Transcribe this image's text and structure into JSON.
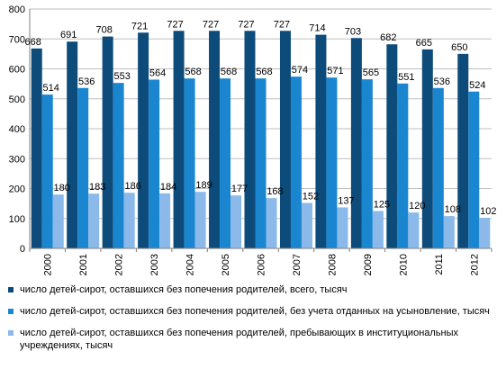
{
  "chart_data": {
    "type": "bar",
    "categories": [
      "2000",
      "2001",
      "2002",
      "2003",
      "2004",
      "2005",
      "2006",
      "2007",
      "2008",
      "2009",
      "2010",
      "2011",
      "2012"
    ],
    "series": [
      {
        "name": "число детей-сирот, оставшихся без попечения родителей, всего, тысяч",
        "color": "#0d4b7a",
        "values": [
          668,
          691,
          708,
          721,
          727,
          727,
          727,
          727,
          714,
          703,
          682,
          665,
          650
        ]
      },
      {
        "name": "число детей-сирот, оставшихся без попечения родителей, без учета отданных на усыновление, тысяч",
        "color": "#1b86d0",
        "values": [
          514,
          536,
          553,
          564,
          568,
          568,
          568,
          574,
          571,
          565,
          551,
          536,
          524
        ]
      },
      {
        "name": "число детей-сирот, оставшихся без попечения родителей, пребывающих в институциональных учреждениях, тысяч",
        "color": "#8ab9ea",
        "values": [
          180,
          183,
          186,
          184,
          189,
          177,
          168,
          152,
          137,
          125,
          120,
          108,
          102
        ]
      }
    ],
    "ylim": [
      0,
      800
    ],
    "yticks": [
      "0",
      "100",
      "200",
      "300",
      "400",
      "500",
      "600",
      "700",
      "800"
    ],
    "grid": true,
    "legend_position": "bottom"
  }
}
